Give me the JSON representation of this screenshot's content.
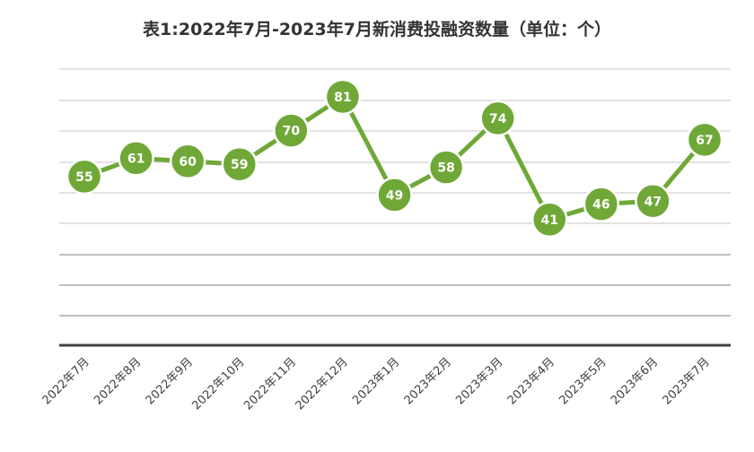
{
  "chart_data": {
    "type": "line",
    "title": "表1:2022年7月-2023年7月新消费投融资数量（单位：个）",
    "categories": [
      "2022年7月",
      "2022年8月",
      "2022年9月",
      "2022年10月",
      "2022年11月",
      "2022年12月",
      "2023年1月",
      "2023年2月",
      "2023年3月",
      "2023年4月",
      "2023年5月",
      "2023年6月",
      "2023年7月"
    ],
    "series": [
      {
        "values": [
          55,
          61,
          60,
          59,
          70,
          81,
          49,
          58,
          74,
          41,
          46,
          47,
          67
        ]
      }
    ],
    "ylim": [
      0,
      90
    ],
    "grid": true,
    "legend": "none",
    "colors": {
      "line": "#70a838",
      "marker": "#70a838",
      "marker_border": "#ffffff",
      "label": "#ffffff",
      "grid": "#d9d9d9",
      "axis": "#404040"
    }
  }
}
